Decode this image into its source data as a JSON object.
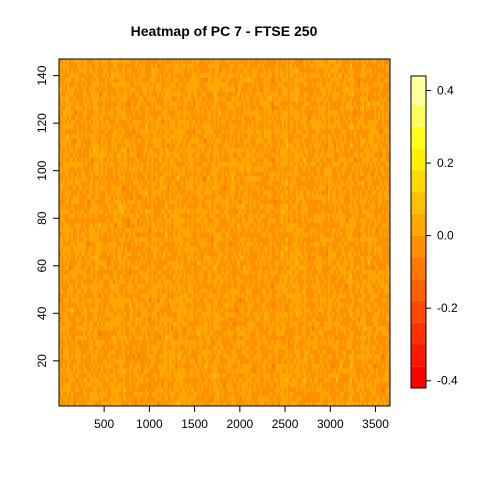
{
  "chart_data": {
    "type": "heatmap",
    "title": "Heatmap of PC 7  - FTSE 250",
    "xlabel": "",
    "ylabel": "",
    "xlim": [
      1,
      3660
    ],
    "ylim": [
      1,
      147
    ],
    "x_ticks": [
      500,
      1000,
      1500,
      2000,
      2500,
      3000,
      3500
    ],
    "y_ticks": [
      20,
      40,
      60,
      80,
      100,
      120,
      140
    ],
    "value_range": [
      -0.42,
      0.44
    ],
    "colorbar": {
      "ticks": [
        -0.4,
        -0.2,
        0.0,
        0.2,
        0.4
      ],
      "tick_labels": [
        "-0.4",
        "-0.2",
        "0.0",
        "0.2",
        "0.4"
      ],
      "levels": [
        -0.42,
        -0.36,
        -0.3,
        -0.24,
        -0.18,
        -0.12,
        -0.06,
        0.0,
        0.06,
        0.12,
        0.18,
        0.24,
        0.3,
        0.36,
        0.44
      ],
      "colors": [
        "#FF0000",
        "#FF1800",
        "#FF3000",
        "#FF4800",
        "#FF6000",
        "#FF7800",
        "#FF9000",
        "#FFA800",
        "#FFC000",
        "#FFD800",
        "#FFF000",
        "#FFFF1A",
        "#FFFF5C",
        "#FFFF9E",
        "#FFFFE0"
      ]
    },
    "grid": false,
    "legend": "right colorbar"
  }
}
